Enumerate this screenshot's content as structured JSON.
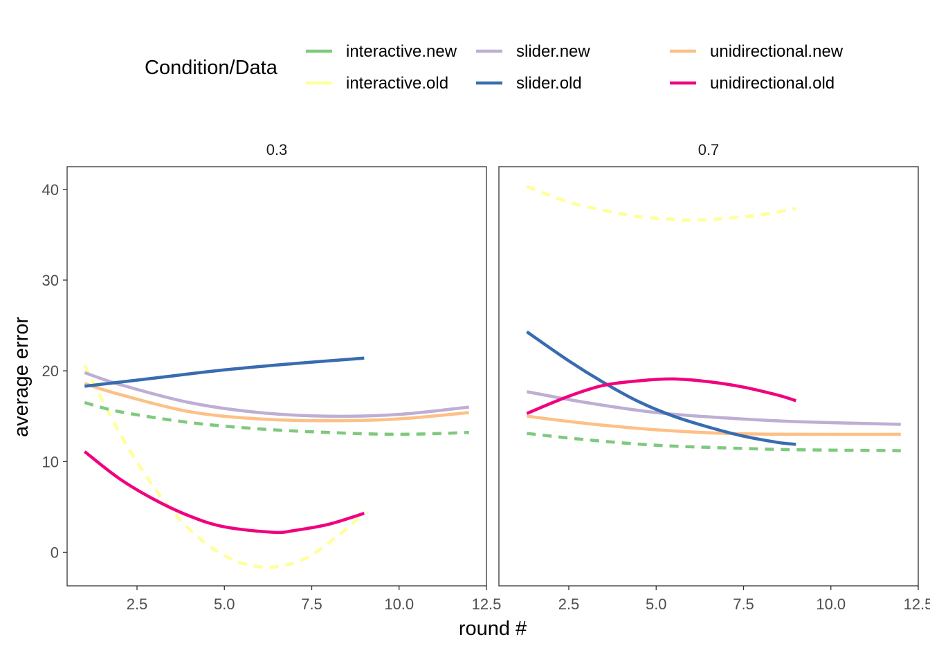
{
  "chart_data": {
    "type": "line",
    "legend": {
      "title": "Condition/Data",
      "placement": "top"
    },
    "xlabel": "round #",
    "ylabel": "average error",
    "xlim": [
      0.5,
      12.5
    ],
    "ylim": [
      -3.7,
      42.5
    ],
    "x_ticks": [
      2.5,
      5.0,
      7.5,
      10.0,
      12.5
    ],
    "x_tick_labels": [
      "2.5",
      "5.0",
      "7.5",
      "10.0",
      "12.5"
    ],
    "y_ticks": [
      0,
      10,
      20,
      30,
      40
    ],
    "y_tick_labels": [
      "0",
      "10",
      "20",
      "30",
      "40"
    ],
    "grid": false,
    "series": [
      {
        "name": "interactive.new",
        "color": "#7fc97f",
        "dash": true
      },
      {
        "name": "slider.new",
        "color": "#beaed4",
        "dash": false
      },
      {
        "name": "unidirectional.new",
        "color": "#fdc086",
        "dash": false
      },
      {
        "name": "interactive.old",
        "color": "#ffff99",
        "dash": true
      },
      {
        "name": "slider.old",
        "color": "#386cb0",
        "dash": false
      },
      {
        "name": "unidirectional.old",
        "color": "#f0027f",
        "dash": false
      }
    ],
    "panels": [
      {
        "label": "0.3",
        "lines": [
          {
            "series": "interactive.old",
            "x": [
              1,
              2.25,
              3.5,
              4.75,
              6,
              7.25,
              8.5,
              9
            ],
            "y": [
              20.6,
              11.5,
              4.6,
              0.2,
              -1.6,
              -0.8,
              2.6,
              4.5
            ]
          },
          {
            "series": "interactive.new",
            "x": [
              1,
              2,
              4,
              6,
              8,
              10,
              12
            ],
            "y": [
              16.5,
              15.5,
              14.3,
              13.6,
              13.2,
              13.0,
              13.2
            ]
          },
          {
            "series": "unidirectional.new",
            "x": [
              1,
              2,
              4,
              6,
              8,
              10,
              12
            ],
            "y": [
              18.6,
              17.4,
              15.5,
              14.7,
              14.5,
              14.7,
              15.4
            ]
          },
          {
            "series": "slider.new",
            "x": [
              1,
              2,
              4,
              6,
              8,
              10,
              12
            ],
            "y": [
              19.8,
              18.5,
              16.5,
              15.4,
              15.0,
              15.2,
              16.0
            ]
          },
          {
            "series": "slider.old",
            "x": [
              1,
              3,
              5,
              7,
              9
            ],
            "y": [
              18.3,
              19.2,
              20.1,
              20.8,
              21.4
            ]
          },
          {
            "series": "unidirectional.old",
            "x": [
              1,
              2,
              3,
              4,
              5,
              6.4,
              7,
              8,
              9
            ],
            "y": [
              11.1,
              8.1,
              5.8,
              4.0,
              2.8,
              2.2,
              2.4,
              3.1,
              4.3
            ]
          }
        ]
      },
      {
        "label": "0.7",
        "lines": [
          {
            "series": "interactive.old",
            "x": [
              1.3,
              2.5,
              3.5,
              4.5,
              5.5,
              6,
              7,
              8,
              9
            ],
            "y": [
              40.3,
              38.6,
              37.7,
              37.0,
              36.7,
              36.6,
              36.8,
              37.2,
              37.9
            ]
          },
          {
            "series": "interactive.new",
            "x": [
              1.3,
              3,
              5,
              7,
              9,
              12
            ],
            "y": [
              13.1,
              12.4,
              11.8,
              11.5,
              11.3,
              11.2
            ]
          },
          {
            "series": "unidirectional.new",
            "x": [
              1.3,
              3,
              5,
              7,
              9,
              12
            ],
            "y": [
              15.0,
              14.2,
              13.5,
              13.1,
              13.0,
              13.0
            ]
          },
          {
            "series": "slider.new",
            "x": [
              1.3,
              3,
              5,
              7,
              9,
              12
            ],
            "y": [
              17.7,
              16.5,
              15.4,
              14.8,
              14.4,
              14.1
            ]
          },
          {
            "series": "slider.old",
            "x": [
              1.3,
              2.5,
              3.5,
              4.5,
              5.5,
              6.5,
              7.5,
              8.5,
              9
            ],
            "y": [
              24.3,
              21.1,
              18.7,
              16.6,
              15.0,
              13.8,
              12.8,
              12.1,
              11.9
            ]
          },
          {
            "series": "unidirectional.old",
            "x": [
              1.3,
              2.5,
              3.5,
              4.5,
              5.5,
              6.5,
              7.5,
              8.5,
              9
            ],
            "y": [
              15.3,
              17.2,
              18.4,
              18.9,
              19.1,
              18.8,
              18.2,
              17.3,
              16.7
            ]
          }
        ]
      }
    ]
  }
}
